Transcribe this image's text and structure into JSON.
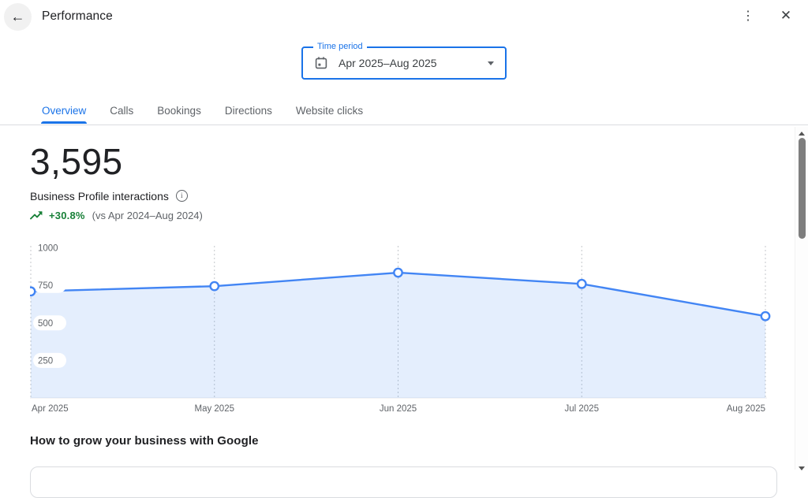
{
  "header": {
    "title": "Performance"
  },
  "icons": {
    "back": "←",
    "overflow": "⋮",
    "close": "✕",
    "info": "i"
  },
  "time_period": {
    "label": "Time period",
    "value": "Apr 2025–Aug 2025"
  },
  "tabs": [
    {
      "label": "Overview",
      "active": true
    },
    {
      "label": "Calls",
      "active": false
    },
    {
      "label": "Bookings",
      "active": false
    },
    {
      "label": "Directions",
      "active": false
    },
    {
      "label": "Website clicks",
      "active": false
    }
  ],
  "metric": {
    "value": "3,595",
    "label": "Business Profile interactions",
    "trend_pct": "+30.8%",
    "trend_compare": "(vs Apr 2024–Aug 2024)"
  },
  "chart_data": {
    "type": "area",
    "title": "Business Profile interactions by month",
    "x": [
      "Apr 2025",
      "May 2025",
      "Jun 2025",
      "Jul 2025",
      "Aug 2025"
    ],
    "values": [
      710,
      745,
      835,
      760,
      545
    ],
    "y_ticks": [
      250,
      500,
      750,
      1000
    ],
    "ylim": [
      0,
      1000
    ],
    "xlabel": "",
    "ylabel": "",
    "legend": "none",
    "grid": "vertical-dashed",
    "line_color": "#4285f4",
    "fill_color": "rgba(66,133,244,0.14)",
    "point_fill": "#ffffff",
    "grid_color": "#c4c7cb",
    "tick_color": "#5f6368"
  },
  "section": {
    "grow_heading": "How to grow your business with Google"
  },
  "colors": {
    "accent": "#1a73e8",
    "positive": "#188038",
    "text_primary": "#202124",
    "text_secondary": "#5f6368",
    "divider": "#dadce0"
  }
}
